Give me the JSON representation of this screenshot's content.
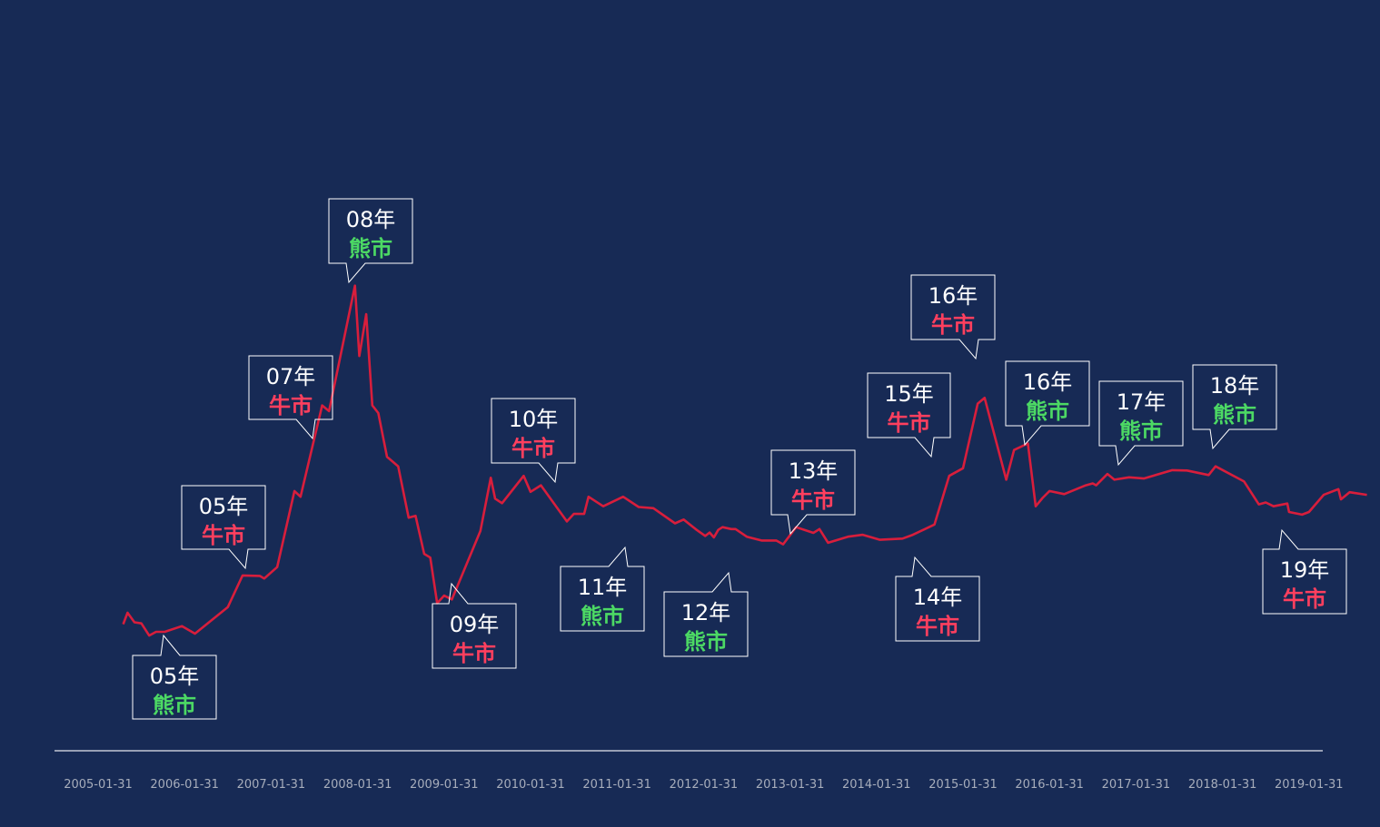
{
  "colors": {
    "background": "#172a55",
    "line": "#d81e3c",
    "axis": "#e6e8ee",
    "tick_label": "#a7adbb",
    "bull": "#ff3f5e",
    "bear": "#4cd964",
    "box_border": "#ffffff"
  },
  "chart_data": {
    "type": "line",
    "title": "",
    "xlabel": "",
    "ylabel": "",
    "grid": false,
    "legend": "none",
    "x_ticks": [
      "2005-01-31",
      "2006-01-31",
      "2007-01-31",
      "2008-01-31",
      "2009-01-31",
      "2010-01-31",
      "2011-01-31",
      "2012-01-31",
      "2013-01-31",
      "2014-01-31",
      "2015-01-31",
      "2016-01-31",
      "2017-01-31",
      "2018-01-31",
      "2019-01-31"
    ],
    "series": [
      {
        "values": [
          [
            2005.37,
            1170
          ],
          [
            2005.42,
            1200
          ],
          [
            2005.5,
            1175
          ],
          [
            2005.58,
            1172
          ],
          [
            2005.67,
            1140
          ],
          [
            2005.75,
            1150
          ],
          [
            2005.85,
            1150
          ],
          [
            2006.05,
            1165
          ],
          [
            2006.2,
            1145
          ],
          [
            2006.58,
            1215
          ],
          [
            2006.75,
            1298
          ],
          [
            2006.95,
            1297
          ],
          [
            2007.0,
            1290
          ],
          [
            2007.15,
            1320
          ],
          [
            2007.35,
            1520
          ],
          [
            2007.42,
            1505
          ],
          [
            2007.67,
            1745
          ],
          [
            2007.75,
            1730
          ],
          [
            2008.05,
            2060
          ],
          [
            2008.1,
            1875
          ],
          [
            2008.18,
            1985
          ],
          [
            2008.25,
            1745
          ],
          [
            2008.32,
            1725
          ],
          [
            2008.42,
            1610
          ],
          [
            2008.55,
            1585
          ],
          [
            2008.67,
            1450
          ],
          [
            2008.75,
            1455
          ],
          [
            2008.85,
            1355
          ],
          [
            2008.92,
            1345
          ],
          [
            2009.0,
            1225
          ],
          [
            2009.08,
            1245
          ],
          [
            2009.17,
            1235
          ],
          [
            2009.5,
            1415
          ],
          [
            2009.62,
            1555
          ],
          [
            2009.67,
            1500
          ],
          [
            2009.75,
            1488
          ],
          [
            2010.0,
            1560
          ],
          [
            2010.08,
            1518
          ],
          [
            2010.2,
            1535
          ],
          [
            2010.5,
            1440
          ],
          [
            2010.58,
            1460
          ],
          [
            2010.7,
            1460
          ],
          [
            2010.75,
            1505
          ],
          [
            2010.92,
            1480
          ],
          [
            2011.15,
            1505
          ],
          [
            2011.33,
            1478
          ],
          [
            2011.5,
            1475
          ],
          [
            2011.75,
            1435
          ],
          [
            2011.85,
            1445
          ],
          [
            2012.0,
            1418
          ],
          [
            2012.1,
            1402
          ],
          [
            2012.15,
            1411
          ],
          [
            2012.2,
            1398
          ],
          [
            2012.25,
            1418
          ],
          [
            2012.3,
            1425
          ],
          [
            2012.4,
            1420
          ],
          [
            2012.45,
            1420
          ],
          [
            2012.58,
            1400
          ],
          [
            2012.75,
            1390
          ],
          [
            2012.92,
            1390
          ],
          [
            2013.0,
            1380
          ],
          [
            2013.15,
            1425
          ],
          [
            2013.35,
            1410
          ],
          [
            2013.42,
            1420
          ],
          [
            2013.52,
            1384
          ],
          [
            2013.75,
            1400
          ],
          [
            2013.92,
            1405
          ],
          [
            2014.12,
            1392
          ],
          [
            2014.38,
            1395
          ],
          [
            2014.5,
            1405
          ],
          [
            2014.75,
            1432
          ],
          [
            2014.92,
            1560
          ],
          [
            2015.08,
            1580
          ],
          [
            2015.25,
            1750
          ],
          [
            2015.33,
            1765
          ],
          [
            2015.58,
            1550
          ],
          [
            2015.67,
            1628
          ],
          [
            2015.83,
            1645
          ],
          [
            2015.92,
            1480
          ],
          [
            2016.0,
            1502
          ],
          [
            2016.08,
            1520
          ],
          [
            2016.25,
            1512
          ],
          [
            2016.5,
            1535
          ],
          [
            2016.58,
            1540
          ],
          [
            2016.62,
            1535
          ],
          [
            2016.75,
            1565
          ],
          [
            2016.83,
            1550
          ],
          [
            2017.0,
            1556
          ],
          [
            2017.17,
            1553
          ],
          [
            2017.5,
            1575
          ],
          [
            2017.67,
            1574
          ],
          [
            2017.92,
            1562
          ],
          [
            2018.0,
            1585
          ],
          [
            2018.33,
            1545
          ],
          [
            2018.5,
            1485
          ],
          [
            2018.58,
            1490
          ],
          [
            2018.67,
            1480
          ],
          [
            2018.83,
            1487
          ],
          [
            2018.85,
            1465
          ],
          [
            2019.0,
            1458
          ],
          [
            2019.08,
            1465
          ],
          [
            2019.25,
            1510
          ],
          [
            2019.42,
            1525
          ],
          [
            2019.45,
            1498
          ],
          [
            2019.55,
            1517
          ],
          [
            2019.75,
            1510
          ]
        ]
      }
    ],
    "annotations": [
      {
        "year_label": "05年",
        "status": "熊市",
        "type": "bear"
      },
      {
        "year_label": "05年",
        "status": "牛市",
        "type": "bull"
      },
      {
        "year_label": "07年",
        "status": "牛市",
        "type": "bull"
      },
      {
        "year_label": "08年",
        "status": "熊市",
        "type": "bear"
      },
      {
        "year_label": "09年",
        "status": "牛市",
        "type": "bull"
      },
      {
        "year_label": "10年",
        "status": "牛市",
        "type": "bull"
      },
      {
        "year_label": "11年",
        "status": "熊市",
        "type": "bear"
      },
      {
        "year_label": "12年",
        "status": "熊市",
        "type": "bear"
      },
      {
        "year_label": "13年",
        "status": "牛市",
        "type": "bull"
      },
      {
        "year_label": "14年",
        "status": "牛市",
        "type": "bull"
      },
      {
        "year_label": "15年",
        "status": "牛市",
        "type": "bull"
      },
      {
        "year_label": "16年",
        "status": "牛市",
        "type": "bull"
      },
      {
        "year_label": "16年",
        "status": "熊市",
        "type": "bear"
      },
      {
        "year_label": "17年",
        "status": "熊市",
        "type": "bear"
      },
      {
        "year_label": "18年",
        "status": "熊市",
        "type": "bear"
      },
      {
        "year_label": "19年",
        "status": "牛市",
        "type": "bull"
      }
    ]
  }
}
